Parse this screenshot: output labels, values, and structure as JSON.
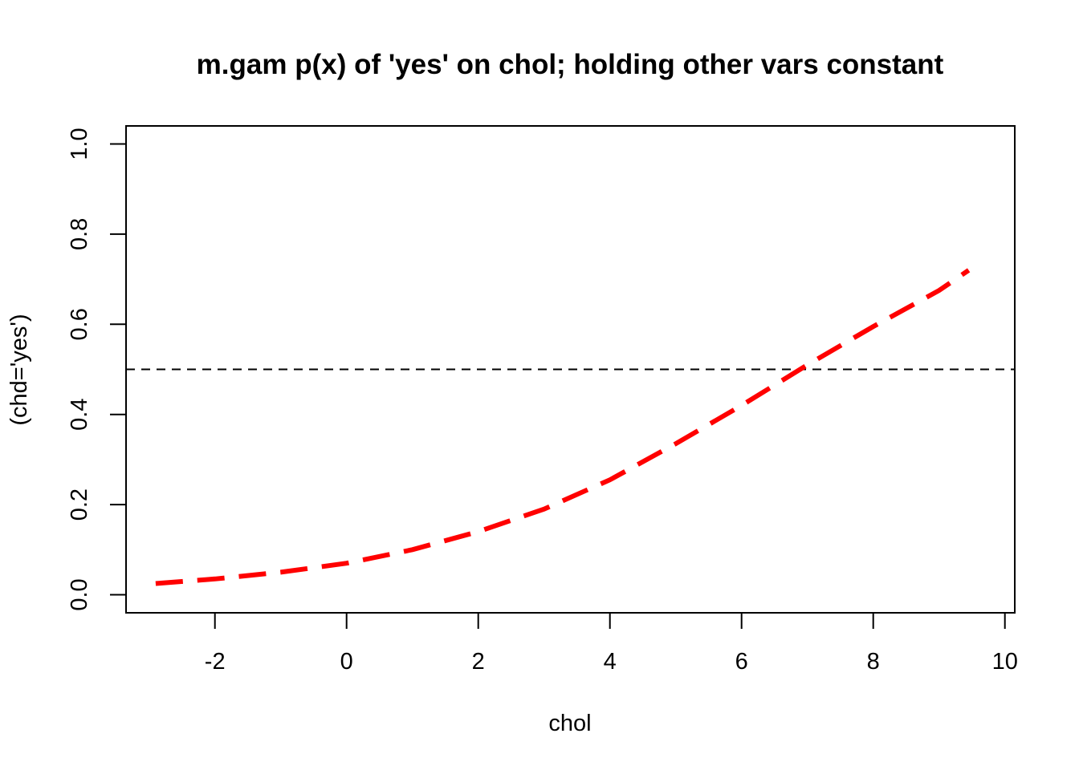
{
  "chart_data": {
    "type": "line",
    "title": "m.gam p(x) of 'yes' on chol; holding other vars constant",
    "xlabel": "chol",
    "ylabel": "(chd='yes')",
    "xlim": [
      -3.35,
      10.15
    ],
    "ylim": [
      -0.04,
      1.04
    ],
    "xticks": [
      -2,
      0,
      2,
      4,
      6,
      8,
      10
    ],
    "xtick_labels": [
      "-2",
      "0",
      "2",
      "4",
      "6",
      "8",
      "10"
    ],
    "yticks": [
      0.0,
      0.2,
      0.4,
      0.6,
      0.8,
      1.0
    ],
    "ytick_labels": [
      "0.0",
      "0.2",
      "0.4",
      "0.6",
      "0.8",
      "1.0"
    ],
    "grid": false,
    "reference_line": {
      "y": 0.5,
      "style": "dashed",
      "color": "#000000"
    },
    "series": [
      {
        "color": "#ff0000",
        "style": "dashed",
        "x": [
          -2.9,
          -2,
          -1,
          0,
          1,
          2,
          3,
          4,
          5,
          6,
          7,
          8,
          9,
          9.45
        ],
        "y": [
          0.025,
          0.035,
          0.05,
          0.07,
          0.1,
          0.14,
          0.19,
          0.255,
          0.335,
          0.42,
          0.51,
          0.595,
          0.675,
          0.72
        ]
      }
    ]
  }
}
